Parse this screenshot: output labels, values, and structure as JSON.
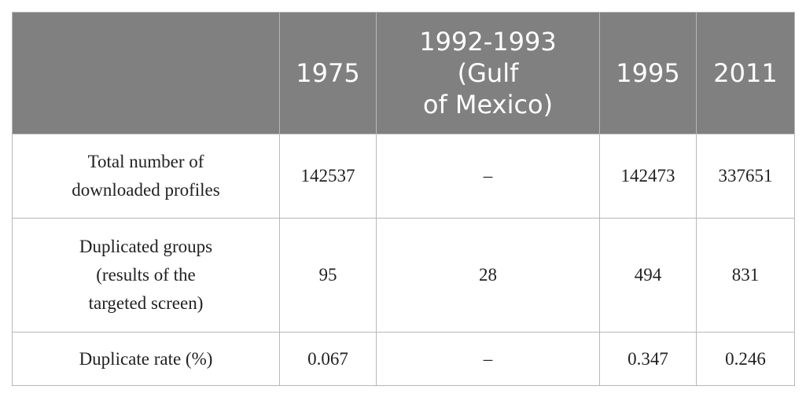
{
  "table": {
    "header": {
      "columns": [
        [
          "1975"
        ],
        [
          "1992-1993",
          "(Gulf",
          "of Mexico)"
        ],
        [
          "1995"
        ],
        [
          "2011"
        ]
      ]
    },
    "rows": [
      {
        "label": [
          "Total number of",
          "downloaded profiles"
        ],
        "cells": [
          142537,
          "–",
          142473,
          337651
        ]
      },
      {
        "label": [
          "Duplicated groups",
          "(results of the",
          "targeted screen)"
        ],
        "cells": [
          95,
          28,
          494,
          831
        ]
      },
      {
        "label": [
          "Duplicate rate (%)"
        ],
        "cells": [
          0.067,
          "–",
          0.347,
          0.246
        ]
      }
    ]
  }
}
